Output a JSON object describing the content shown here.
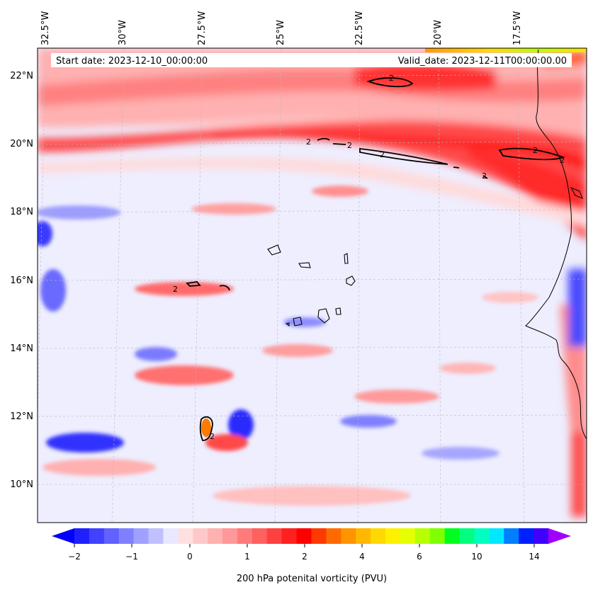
{
  "map": {
    "start_date_label": "Start date: 2023-12-10_00:00:00",
    "valid_date_label": "Valid_date: 2023-12-11T00:00:00.00",
    "lon_labels": [
      "32.5°W",
      "30°W",
      "27.5°W",
      "25°W",
      "22.5°W",
      "20°W",
      "17.5°W"
    ],
    "lat_labels": [
      "22°N",
      "20°N",
      "18°N",
      "16°N",
      "14°N",
      "12°N",
      "10°N"
    ],
    "contour_label": "2"
  },
  "colorbar": {
    "tick_labels": [
      "−2",
      "−1",
      "0",
      "1",
      "2",
      "4",
      "6",
      "10",
      "14"
    ],
    "label": "200 hPa potenital vorticity (PVU)",
    "colors": [
      "#0000ff",
      "#2020ff",
      "#4141ff",
      "#6161ff",
      "#8080ff",
      "#a0a0ff",
      "#c0c0ff",
      "#e8e8ff",
      "#ffe0e0",
      "#ffc8c8",
      "#ffb0b0",
      "#ff9898",
      "#ff7b7b",
      "#ff6060",
      "#ff4040",
      "#ff2020",
      "#ff0000",
      "#ff3a00",
      "#ff6a00",
      "#ff9400",
      "#ffb800",
      "#ffd800",
      "#fff000",
      "#e6ff00",
      "#b8ff00",
      "#80ff00",
      "#00ff20",
      "#00ff80",
      "#00ffc0",
      "#00e8ff",
      "#0080ff",
      "#0020ff",
      "#4000ff",
      "#a000ff"
    ]
  }
}
